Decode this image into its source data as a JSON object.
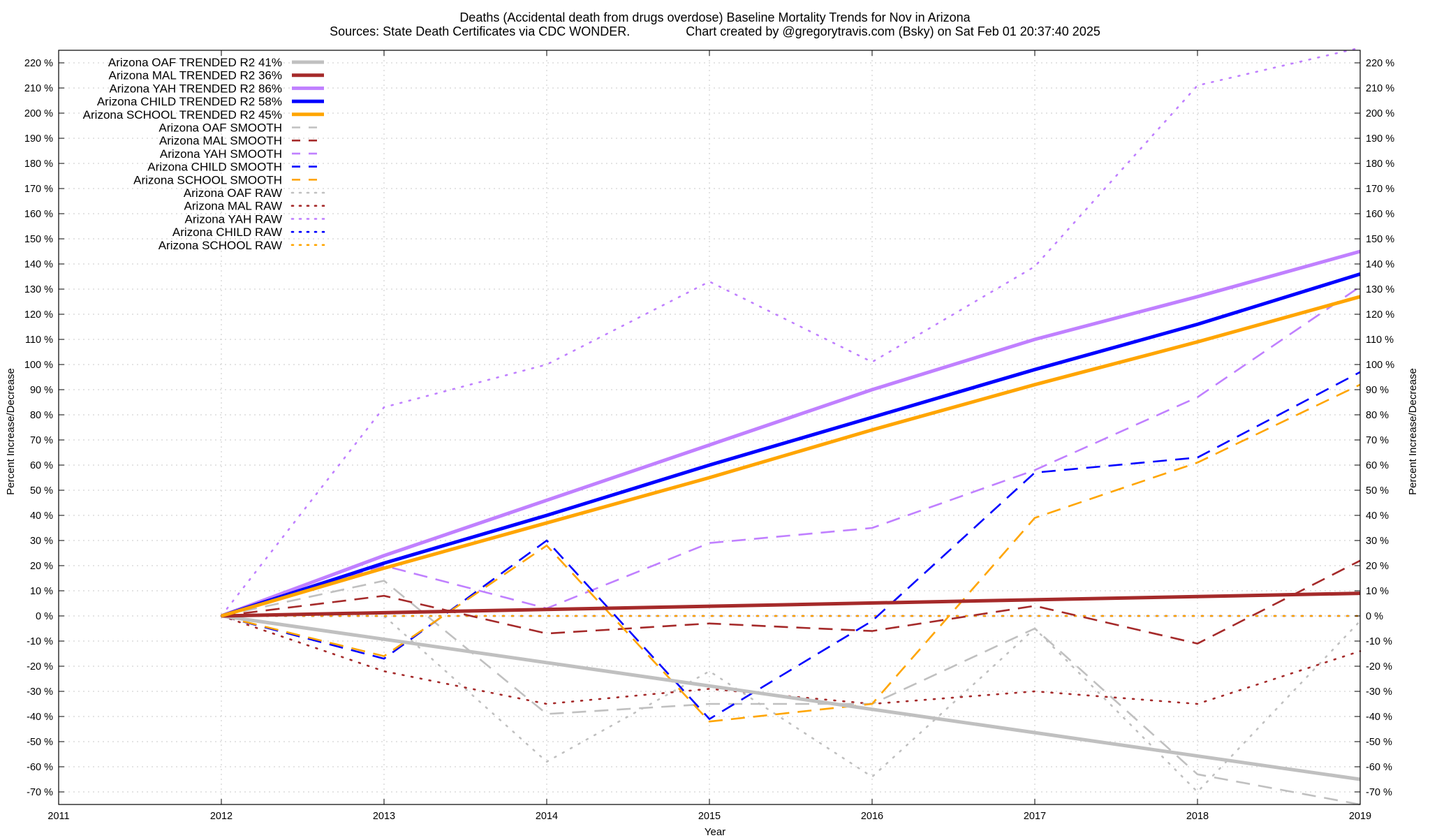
{
  "chart_data": {
    "type": "line",
    "title": "Deaths (Accidental death from drugs overdose)  Baseline Mortality Trends for Nov in Arizona",
    "subtitle": "Sources: State Death Certificates via CDC WONDER.                Chart created by @gregorytravis.com (Bsky) on Sat Feb 01 20:37:40 2025",
    "xlabel": "Year",
    "ylabel": "Percent Increase/Decrease",
    "y2label": "Percent Increase/Decrease",
    "xlim": [
      2011,
      2019
    ],
    "ylim": [
      -75,
      225
    ],
    "xticks": [
      2011,
      2012,
      2013,
      2014,
      2015,
      2016,
      2017,
      2018,
      2019
    ],
    "xtick_labels": [
      "2011",
      "2012",
      "2013",
      "2014",
      "2015",
      "2016",
      "2017",
      "2018",
      "2019"
    ],
    "yticks": [
      -70,
      -60,
      -50,
      -40,
      -30,
      -20,
      -10,
      0,
      10,
      20,
      30,
      40,
      50,
      60,
      70,
      80,
      90,
      100,
      110,
      120,
      130,
      140,
      150,
      160,
      170,
      180,
      190,
      200,
      210,
      220
    ],
    "ytick_labels": [
      "-70 %",
      "-60 %",
      "-50 %",
      "-40 %",
      "-30 %",
      "-20 %",
      "-10 %",
      "0 %",
      "10 %",
      "20 %",
      "30 %",
      "40 %",
      "50 %",
      "60 %",
      "70 %",
      "80 %",
      "90 %",
      "100 %",
      "110 %",
      "120 %",
      "130 %",
      "140 %",
      "150 %",
      "160 %",
      "170 %",
      "180 %",
      "190 %",
      "200 %",
      "210 %",
      "220 %"
    ],
    "grid": true,
    "legend_position": "top-left",
    "series": [
      {
        "name": "Arizona OAF TRENDED R2  41%",
        "style": "solid",
        "color": "#c0c0c0",
        "x": [
          2012,
          2019
        ],
        "values": [
          0,
          -65
        ]
      },
      {
        "name": "Arizona MAL TRENDED R2  36%",
        "style": "solid",
        "color": "#a52a2a",
        "x": [
          2012,
          2019
        ],
        "values": [
          0,
          9
        ]
      },
      {
        "name": "Arizona YAH TRENDED R2  86%",
        "style": "solid",
        "color": "#c080ff",
        "x": [
          2012,
          2013,
          2014,
          2015,
          2016,
          2017,
          2018,
          2019
        ],
        "values": [
          0,
          24,
          46,
          68,
          90,
          110,
          127,
          145
        ]
      },
      {
        "name": "Arizona CHILD TRENDED R2  58%",
        "style": "solid",
        "color": "#0000ff",
        "x": [
          2012,
          2013,
          2014,
          2015,
          2016,
          2017,
          2018,
          2019
        ],
        "values": [
          0,
          21,
          40,
          60,
          79,
          98,
          116,
          136
        ]
      },
      {
        "name": "Arizona SCHOOL TRENDED R2  45%",
        "style": "solid",
        "color": "#ffa500",
        "x": [
          2012,
          2013,
          2014,
          2015,
          2016,
          2017,
          2018,
          2019
        ],
        "values": [
          0,
          19,
          37,
          55,
          74,
          92,
          109,
          127
        ]
      },
      {
        "name": "Arizona OAF SMOOTH",
        "style": "dashed",
        "color": "#c0c0c0",
        "x": [
          2012,
          2013,
          2014,
          2015,
          2016,
          2017,
          2018,
          2019
        ],
        "values": [
          0,
          14,
          -39,
          -35,
          -35,
          -5,
          -63,
          -75
        ]
      },
      {
        "name": "Arizona MAL SMOOTH",
        "style": "dashed",
        "color": "#a52a2a",
        "x": [
          2012,
          2013,
          2014,
          2015,
          2016,
          2017,
          2018,
          2019
        ],
        "values": [
          0,
          8,
          -7,
          -3,
          -6,
          4,
          -11,
          22
        ]
      },
      {
        "name": "Arizona YAH SMOOTH",
        "style": "dashed",
        "color": "#c080ff",
        "x": [
          2012,
          2013,
          2014,
          2015,
          2016,
          2017,
          2018,
          2019
        ],
        "values": [
          0,
          20,
          3,
          29,
          35,
          58,
          87,
          131
        ]
      },
      {
        "name": "Arizona CHILD SMOOTH",
        "style": "dashed",
        "color": "#0000ff",
        "x": [
          2012,
          2013,
          2014,
          2015,
          2016,
          2017,
          2018,
          2019
        ],
        "values": [
          0,
          -17,
          30,
          -41,
          -2,
          57,
          63,
          97
        ]
      },
      {
        "name": "Arizona SCHOOL SMOOTH",
        "style": "dashed",
        "color": "#ffa500",
        "x": [
          2012,
          2013,
          2014,
          2015,
          2016,
          2017,
          2018,
          2019
        ],
        "values": [
          0,
          -16,
          28,
          -42,
          -35,
          39,
          61,
          92
        ]
      },
      {
        "name": "Arizona OAF RAW",
        "style": "dotted",
        "color": "#c0c0c0",
        "x": [
          2012,
          2013,
          2014,
          2015,
          2016,
          2017,
          2018,
          2019
        ],
        "values": [
          0,
          0,
          -58,
          -22,
          -64,
          -5,
          -70,
          -2
        ]
      },
      {
        "name": "Arizona MAL RAW",
        "style": "dotted",
        "color": "#a52a2a",
        "x": [
          2012,
          2013,
          2014,
          2015,
          2016,
          2017,
          2018,
          2019
        ],
        "values": [
          0,
          -22,
          -35,
          -29,
          -35,
          -30,
          -35,
          -14
        ]
      },
      {
        "name": "Arizona YAH RAW",
        "style": "dotted",
        "color": "#c080ff",
        "x": [
          2012,
          2013,
          2014,
          2015,
          2016,
          2017,
          2018,
          2019
        ],
        "values": [
          0,
          83,
          100,
          133,
          101,
          139,
          211,
          226
        ]
      },
      {
        "name": "Arizona CHILD RAW",
        "style": "dotted",
        "color": "#0000ff",
        "x": [
          2012,
          2013,
          2014,
          2015,
          2016,
          2017,
          2018,
          2019
        ],
        "values": [
          0,
          0,
          0,
          0,
          0,
          0,
          0,
          0
        ]
      },
      {
        "name": "Arizona SCHOOL RAW",
        "style": "dotted",
        "color": "#ffa500",
        "x": [
          2012,
          2013,
          2014,
          2015,
          2016,
          2017,
          2018,
          2019
        ],
        "values": [
          0,
          0,
          0,
          0,
          0,
          0,
          0,
          0
        ]
      }
    ]
  }
}
